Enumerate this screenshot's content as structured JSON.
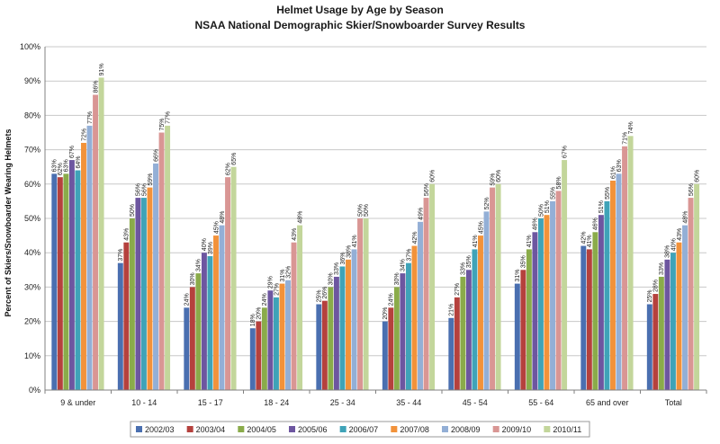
{
  "chart_data": {
    "type": "bar",
    "title": "Helmet Usage by Age by Season",
    "subtitle": "NSAA National Demographic Skier/Snowboarder Survey Results",
    "ylabel": "Percent of Skiers/Snowboarder Wearing Helmets",
    "xlabel": "",
    "ylim": [
      0,
      100
    ],
    "yticks": [
      "0%",
      "10%",
      "20%",
      "30%",
      "40%",
      "50%",
      "60%",
      "70%",
      "80%",
      "90%",
      "100%"
    ],
    "grid": true,
    "legend_position": "bottom",
    "categories": [
      "9 & under",
      "10 - 14",
      "15 - 17",
      "18 - 24",
      "25 - 34",
      "35 - 44",
      "45 - 54",
      "55 - 64",
      "65 and over",
      "Total"
    ],
    "series": [
      {
        "name": "2002/03",
        "color": "#4a6fb0",
        "values": [
          63,
          37,
          24,
          18,
          25,
          20,
          21,
          31,
          42,
          25
        ],
        "labels": [
          "63%",
          "37%",
          "24%",
          "18%",
          "25%",
          "20%",
          "21%",
          "31%",
          "42%",
          "25%"
        ]
      },
      {
        "name": "2003/04",
        "color": "#b5413d",
        "values": [
          62,
          43,
          30,
          20,
          26,
          24,
          27,
          35,
          41,
          28
        ],
        "labels": [
          "62%",
          "43%",
          "30%",
          "20%",
          "26%",
          "24%",
          "27%",
          "35%",
          "41%",
          "28%"
        ]
      },
      {
        "name": "2004/05",
        "color": "#8aab4a",
        "values": [
          63,
          50,
          34,
          24,
          30,
          30,
          33,
          41,
          46,
          33
        ],
        "labels": [
          "63%",
          "50%",
          "34%",
          "24%",
          "30%",
          "30%",
          "33%",
          "41%",
          "46%",
          "33%"
        ]
      },
      {
        "name": "2005/06",
        "color": "#6d56a0",
        "values": [
          67,
          56,
          40,
          29,
          33,
          34,
          35,
          46,
          51,
          38
        ],
        "labels": [
          "67%",
          "56%",
          "40%",
          "29%",
          "33%",
          "34%",
          "35%",
          "46%",
          "51%",
          "38%"
        ]
      },
      {
        "name": "2006/07",
        "color": "#3fa3b8",
        "values": [
          64,
          56,
          39,
          27,
          36,
          37,
          41,
          50,
          55,
          40
        ],
        "labels": [
          "64%",
          "56%",
          "39%",
          "27%",
          "36%",
          "37%",
          "41%",
          "50%",
          "55%",
          "40%"
        ]
      },
      {
        "name": "2007/08",
        "color": "#f2923a",
        "values": [
          72,
          59,
          45,
          31,
          38,
          42,
          45,
          51,
          61,
          43
        ],
        "labels": [
          "72%",
          "59%",
          "45%",
          "31%",
          "38%",
          "42%",
          "45%",
          "51%",
          "61%",
          "43%"
        ]
      },
      {
        "name": "2008/09",
        "color": "#93afd6",
        "values": [
          77,
          66,
          48,
          32,
          41,
          49,
          52,
          55,
          63,
          48
        ],
        "labels": [
          "77%",
          "66%",
          "48%",
          "32%",
          "41%",
          "49%",
          "52%",
          "55%",
          "63%",
          "48%"
        ]
      },
      {
        "name": "2009/10",
        "color": "#d99694",
        "values": [
          86,
          75,
          62,
          43,
          50,
          56,
          59,
          58,
          71,
          56
        ],
        "labels": [
          "86%",
          "75%",
          "62%",
          "43%",
          "50%",
          "56%",
          "59%",
          "58%",
          "71%",
          "56%"
        ]
      },
      {
        "name": "2010/11",
        "color": "#c3d69b",
        "values": [
          91,
          77,
          65,
          48,
          50,
          60,
          60,
          67,
          74,
          60
        ],
        "labels": [
          "91%",
          "77%",
          "65%",
          "48%",
          "50%",
          "60%",
          "60%",
          "67%",
          "74%",
          "60%"
        ]
      }
    ]
  }
}
